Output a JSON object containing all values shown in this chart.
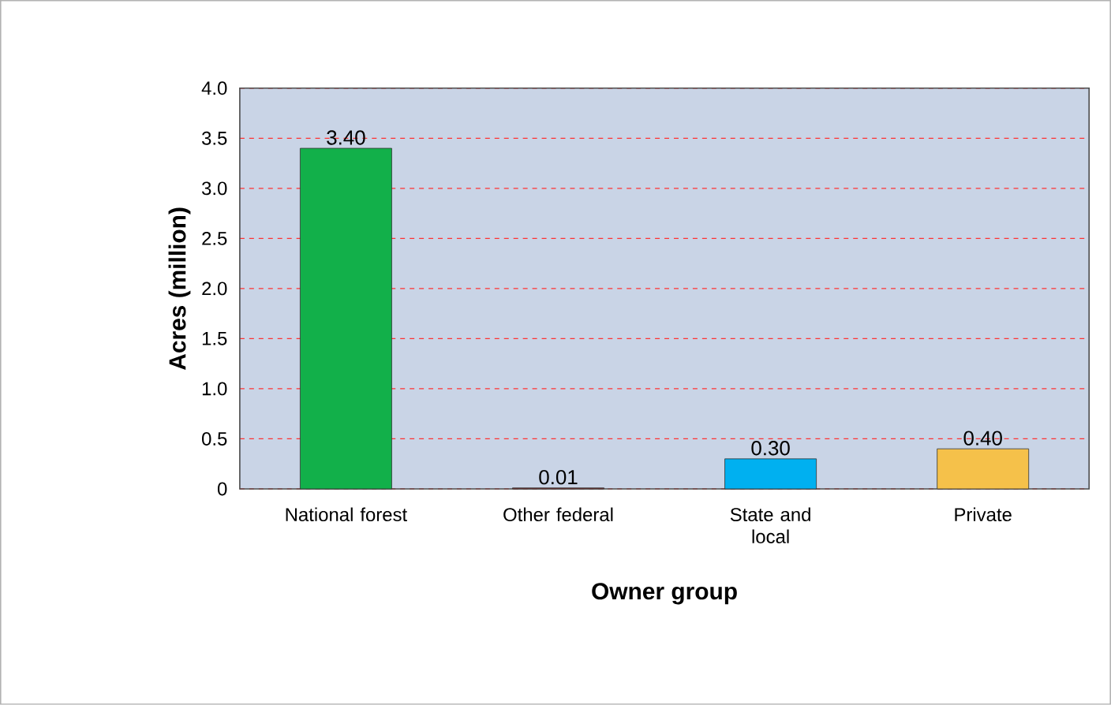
{
  "chart_data": {
    "type": "bar",
    "xlabel": "Owner group",
    "ylabel": "Acres (million)",
    "categories": [
      "National forest",
      "Other federal",
      "State and local",
      "Private"
    ],
    "values": [
      3.4,
      0.01,
      0.3,
      0.4
    ],
    "colors": [
      "#12b04a",
      "#8b3a3a",
      "#00b0f0",
      "#f5c14a"
    ],
    "value_labels": [
      "3.40",
      "0.01",
      "0.30",
      "0.40"
    ],
    "ylim": [
      0,
      4
    ],
    "yticks": [
      0,
      0.5,
      {
        "value": 1,
        "label": "1.0"
      },
      1.5,
      {
        "value": 2,
        "label": "2.0"
      },
      2.5,
      {
        "value": 3,
        "label": "3.0"
      },
      3.5,
      {
        "value": 4,
        "label": "4.0"
      }
    ],
    "grid": "y"
  }
}
